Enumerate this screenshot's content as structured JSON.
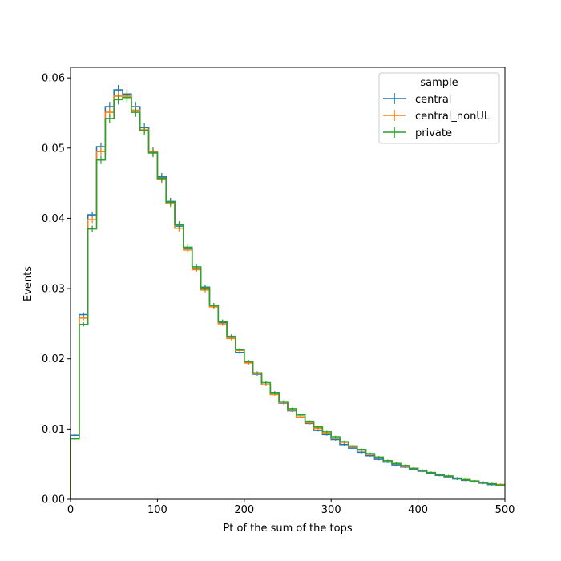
{
  "chart_data": {
    "type": "line",
    "style": "step-histogram",
    "xlabel": "Pt of the sum of the tops",
    "ylabel": "Events",
    "xlim": [
      0,
      500
    ],
    "ylim": [
      0,
      0.0615
    ],
    "xticks": [
      0,
      100,
      200,
      300,
      400,
      500
    ],
    "xtick_labels": [
      "0",
      "100",
      "200",
      "300",
      "400",
      "500"
    ],
    "yticks": [
      0,
      0.01,
      0.02,
      0.03,
      0.04,
      0.05,
      0.06
    ],
    "ytick_labels": [
      "0.00",
      "0.01",
      "0.02",
      "0.03",
      "0.04",
      "0.05",
      "0.06"
    ],
    "grid": false,
    "legend": {
      "title": "sample",
      "placement": "top-right"
    },
    "bin_edges": [
      0,
      10,
      20,
      30,
      40,
      50,
      60,
      70,
      80,
      90,
      100,
      110,
      120,
      130,
      140,
      150,
      160,
      170,
      180,
      190,
      200,
      210,
      220,
      230,
      240,
      250,
      260,
      270,
      280,
      290,
      300,
      310,
      320,
      330,
      340,
      350,
      360,
      370,
      380,
      390,
      400,
      410,
      420,
      430,
      440,
      450,
      460,
      470,
      480,
      490,
      500
    ],
    "series": [
      {
        "name": "central",
        "color": "#1f77b4",
        "values": [
          0.0091,
          0.0263,
          0.0405,
          0.0502,
          0.0559,
          0.0583,
          0.0577,
          0.0559,
          0.0529,
          0.0495,
          0.0459,
          0.0424,
          0.0389,
          0.0357,
          0.0329,
          0.0302,
          0.0276,
          0.0252,
          0.0231,
          0.0209,
          0.0195,
          0.0178,
          0.0163,
          0.015,
          0.0137,
          0.0126,
          0.0117,
          0.0108,
          0.0098,
          0.0092,
          0.0085,
          0.0078,
          0.0073,
          0.0067,
          0.0062,
          0.0057,
          0.0053,
          0.0049,
          0.0046,
          0.0043,
          0.004,
          0.0037,
          0.0034,
          0.0032,
          0.0029,
          0.0027,
          0.0025,
          0.0023,
          0.0021,
          0.002
        ]
      },
      {
        "name": "central_nonUL",
        "color": "#ff7f0e",
        "values": [
          0.0087,
          0.0258,
          0.0398,
          0.0495,
          0.0551,
          0.0574,
          0.0574,
          0.0554,
          0.0526,
          0.0494,
          0.0456,
          0.0421,
          0.0386,
          0.0355,
          0.0327,
          0.0298,
          0.0274,
          0.025,
          0.0229,
          0.0212,
          0.0194,
          0.0179,
          0.0163,
          0.0149,
          0.0138,
          0.0127,
          0.0117,
          0.0109,
          0.0101,
          0.0094,
          0.0087,
          0.0081,
          0.0075,
          0.007,
          0.0064,
          0.0059,
          0.0055,
          0.0051,
          0.0047,
          0.0044,
          0.0041,
          0.0038,
          0.0035,
          0.0033,
          0.003,
          0.0028,
          0.0026,
          0.0024,
          0.0022,
          0.0021
        ]
      },
      {
        "name": "private",
        "color": "#2ca02c",
        "values": [
          0.0086,
          0.0249,
          0.0385,
          0.0483,
          0.0542,
          0.0569,
          0.0572,
          0.0551,
          0.0525,
          0.0493,
          0.0457,
          0.0423,
          0.0391,
          0.0359,
          0.0331,
          0.0301,
          0.0276,
          0.0253,
          0.0232,
          0.0213,
          0.0196,
          0.018,
          0.0166,
          0.0152,
          0.0139,
          0.0129,
          0.012,
          0.0111,
          0.0103,
          0.0096,
          0.0089,
          0.0082,
          0.0076,
          0.0071,
          0.0065,
          0.006,
          0.0055,
          0.0051,
          0.0048,
          0.0044,
          0.0041,
          0.0038,
          0.0035,
          0.0033,
          0.003,
          0.0028,
          0.0026,
          0.0024,
          0.0022,
          0.002
        ]
      }
    ]
  }
}
